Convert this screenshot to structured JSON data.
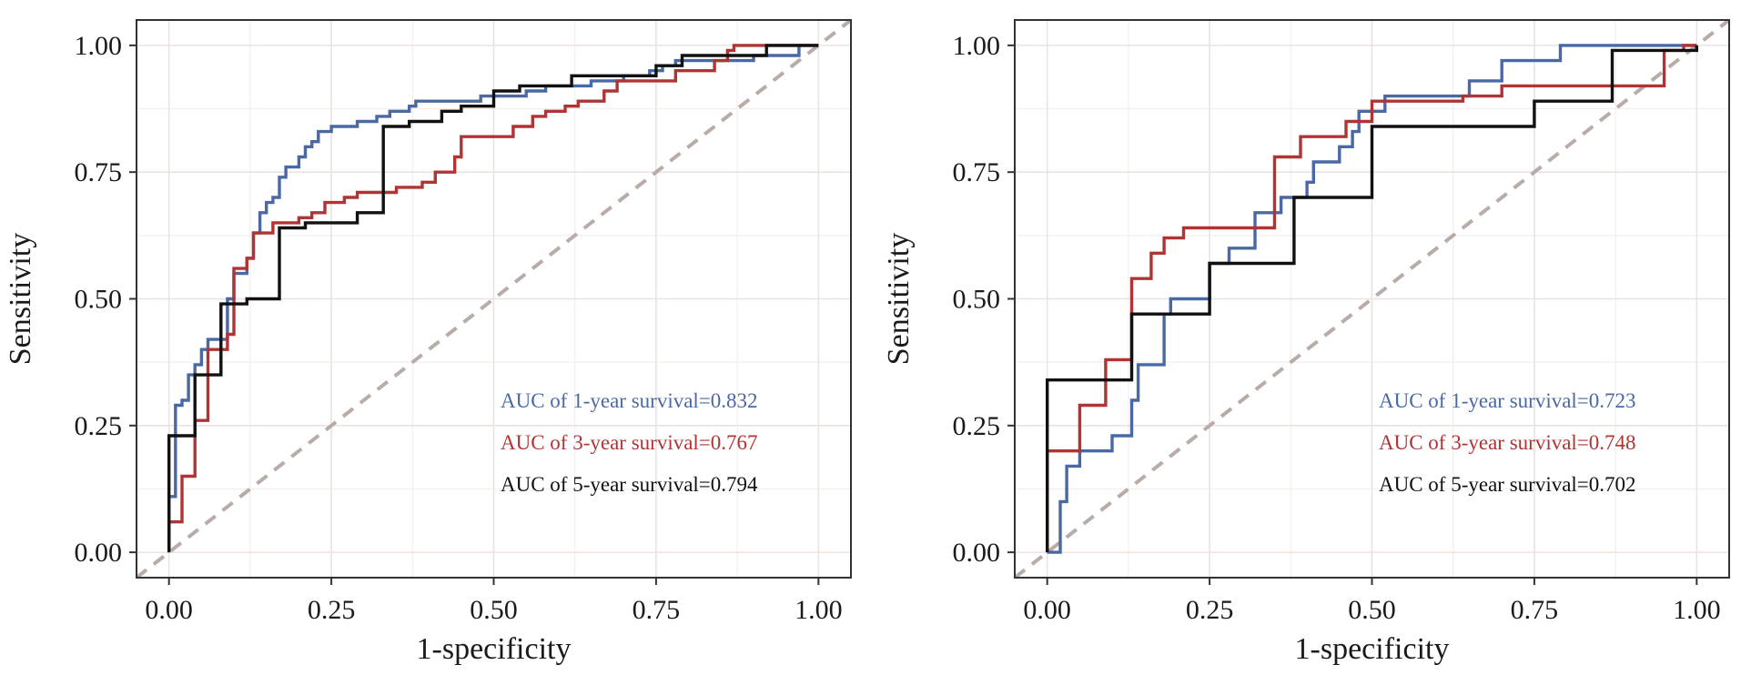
{
  "chart_data": [
    {
      "type": "line",
      "title": "",
      "xlabel": "1-specificity",
      "ylabel": "Sensitivity",
      "xlim": [
        -0.05,
        1.05
      ],
      "ylim": [
        -0.05,
        1.05
      ],
      "xticks": [
        "0.00",
        "0.25",
        "0.50",
        "0.75",
        "1.00"
      ],
      "yticks": [
        "0.00",
        "0.25",
        "0.50",
        "0.75",
        "1.00"
      ],
      "grid": true,
      "reference_line": "dashed diagonal from (0,0) to (1,1)",
      "series": [
        {
          "label": "AUC of 1-year survival=0.832",
          "color": "#4a69a4",
          "points": [
            [
              0,
              0
            ],
            [
              0,
              0.11
            ],
            [
              0.01,
              0.11
            ],
            [
              0.01,
              0.29
            ],
            [
              0.02,
              0.29
            ],
            [
              0.02,
              0.3
            ],
            [
              0.03,
              0.3
            ],
            [
              0.03,
              0.35
            ],
            [
              0.04,
              0.35
            ],
            [
              0.04,
              0.37
            ],
            [
              0.05,
              0.37
            ],
            [
              0.05,
              0.4
            ],
            [
              0.06,
              0.4
            ],
            [
              0.06,
              0.42
            ],
            [
              0.09,
              0.42
            ],
            [
              0.09,
              0.5
            ],
            [
              0.1,
              0.5
            ],
            [
              0.1,
              0.55
            ],
            [
              0.12,
              0.55
            ],
            [
              0.12,
              0.58
            ],
            [
              0.13,
              0.58
            ],
            [
              0.13,
              0.63
            ],
            [
              0.14,
              0.63
            ],
            [
              0.14,
              0.67
            ],
            [
              0.15,
              0.67
            ],
            [
              0.15,
              0.69
            ],
            [
              0.16,
              0.69
            ],
            [
              0.16,
              0.7
            ],
            [
              0.17,
              0.7
            ],
            [
              0.17,
              0.74
            ],
            [
              0.18,
              0.74
            ],
            [
              0.18,
              0.76
            ],
            [
              0.2,
              0.76
            ],
            [
              0.2,
              0.78
            ],
            [
              0.21,
              0.78
            ],
            [
              0.21,
              0.8
            ],
            [
              0.22,
              0.8
            ],
            [
              0.22,
              0.81
            ],
            [
              0.23,
              0.81
            ],
            [
              0.23,
              0.83
            ],
            [
              0.25,
              0.83
            ],
            [
              0.25,
              0.84
            ],
            [
              0.29,
              0.84
            ],
            [
              0.29,
              0.85
            ],
            [
              0.32,
              0.85
            ],
            [
              0.32,
              0.86
            ],
            [
              0.34,
              0.86
            ],
            [
              0.34,
              0.87
            ],
            [
              0.37,
              0.87
            ],
            [
              0.37,
              0.88
            ],
            [
              0.38,
              0.88
            ],
            [
              0.38,
              0.89
            ],
            [
              0.48,
              0.89
            ],
            [
              0.48,
              0.9
            ],
            [
              0.55,
              0.9
            ],
            [
              0.55,
              0.91
            ],
            [
              0.58,
              0.91
            ],
            [
              0.58,
              0.92
            ],
            [
              0.65,
              0.92
            ],
            [
              0.65,
              0.93
            ],
            [
              0.7,
              0.93
            ],
            [
              0.7,
              0.94
            ],
            [
              0.74,
              0.94
            ],
            [
              0.74,
              0.95
            ],
            [
              0.76,
              0.95
            ],
            [
              0.76,
              0.96
            ],
            [
              0.78,
              0.96
            ],
            [
              0.78,
              0.97
            ],
            [
              0.9,
              0.97
            ],
            [
              0.9,
              0.98
            ],
            [
              0.97,
              0.98
            ],
            [
              0.97,
              1.0
            ],
            [
              1.0,
              1.0
            ]
          ]
        },
        {
          "label": "AUC of 3-year survival=0.767",
          "color": "#b03434",
          "points": [
            [
              0,
              0
            ],
            [
              0,
              0.06
            ],
            [
              0.02,
              0.06
            ],
            [
              0.02,
              0.15
            ],
            [
              0.04,
              0.15
            ],
            [
              0.04,
              0.26
            ],
            [
              0.06,
              0.26
            ],
            [
              0.06,
              0.4
            ],
            [
              0.09,
              0.4
            ],
            [
              0.09,
              0.43
            ],
            [
              0.1,
              0.43
            ],
            [
              0.1,
              0.56
            ],
            [
              0.12,
              0.56
            ],
            [
              0.12,
              0.58
            ],
            [
              0.13,
              0.58
            ],
            [
              0.13,
              0.63
            ],
            [
              0.16,
              0.63
            ],
            [
              0.16,
              0.65
            ],
            [
              0.2,
              0.65
            ],
            [
              0.2,
              0.66
            ],
            [
              0.22,
              0.66
            ],
            [
              0.22,
              0.67
            ],
            [
              0.24,
              0.67
            ],
            [
              0.24,
              0.69
            ],
            [
              0.27,
              0.69
            ],
            [
              0.27,
              0.7
            ],
            [
              0.29,
              0.7
            ],
            [
              0.29,
              0.71
            ],
            [
              0.35,
              0.71
            ],
            [
              0.35,
              0.72
            ],
            [
              0.39,
              0.72
            ],
            [
              0.39,
              0.73
            ],
            [
              0.41,
              0.73
            ],
            [
              0.41,
              0.75
            ],
            [
              0.44,
              0.75
            ],
            [
              0.44,
              0.78
            ],
            [
              0.45,
              0.78
            ],
            [
              0.45,
              0.82
            ],
            [
              0.53,
              0.82
            ],
            [
              0.53,
              0.84
            ],
            [
              0.56,
              0.84
            ],
            [
              0.56,
              0.86
            ],
            [
              0.58,
              0.86
            ],
            [
              0.58,
              0.87
            ],
            [
              0.61,
              0.87
            ],
            [
              0.61,
              0.88
            ],
            [
              0.63,
              0.88
            ],
            [
              0.63,
              0.89
            ],
            [
              0.67,
              0.89
            ],
            [
              0.67,
              0.91
            ],
            [
              0.69,
              0.91
            ],
            [
              0.69,
              0.93
            ],
            [
              0.78,
              0.93
            ],
            [
              0.78,
              0.95
            ],
            [
              0.84,
              0.95
            ],
            [
              0.84,
              0.97
            ],
            [
              0.86,
              0.97
            ],
            [
              0.86,
              0.99
            ],
            [
              0.87,
              0.99
            ],
            [
              0.87,
              1.0
            ],
            [
              1.0,
              1.0
            ]
          ]
        },
        {
          "label": "AUC of 5-year survival=0.794",
          "color": "#111111",
          "points": [
            [
              0,
              0
            ],
            [
              0,
              0.23
            ],
            [
              0.04,
              0.23
            ],
            [
              0.04,
              0.35
            ],
            [
              0.08,
              0.35
            ],
            [
              0.08,
              0.49
            ],
            [
              0.12,
              0.49
            ],
            [
              0.12,
              0.5
            ],
            [
              0.17,
              0.5
            ],
            [
              0.17,
              0.64
            ],
            [
              0.21,
              0.64
            ],
            [
              0.21,
              0.65
            ],
            [
              0.29,
              0.65
            ],
            [
              0.29,
              0.67
            ],
            [
              0.33,
              0.67
            ],
            [
              0.33,
              0.84
            ],
            [
              0.37,
              0.84
            ],
            [
              0.37,
              0.85
            ],
            [
              0.42,
              0.85
            ],
            [
              0.42,
              0.87
            ],
            [
              0.45,
              0.87
            ],
            [
              0.45,
              0.88
            ],
            [
              0.5,
              0.88
            ],
            [
              0.5,
              0.91
            ],
            [
              0.54,
              0.91
            ],
            [
              0.54,
              0.92
            ],
            [
              0.62,
              0.92
            ],
            [
              0.62,
              0.94
            ],
            [
              0.75,
              0.94
            ],
            [
              0.75,
              0.96
            ],
            [
              0.79,
              0.96
            ],
            [
              0.79,
              0.98
            ],
            [
              0.92,
              0.98
            ],
            [
              0.92,
              1.0
            ],
            [
              1.0,
              1.0
            ]
          ]
        }
      ]
    },
    {
      "type": "line",
      "title": "",
      "xlabel": "1-specificity",
      "ylabel": "Sensitivity",
      "xlim": [
        -0.05,
        1.05
      ],
      "ylim": [
        -0.05,
        1.05
      ],
      "xticks": [
        "0.00",
        "0.25",
        "0.50",
        "0.75",
        "1.00"
      ],
      "yticks": [
        "0.00",
        "0.25",
        "0.50",
        "0.75",
        "1.00"
      ],
      "grid": true,
      "reference_line": "dashed diagonal from (0,0) to (1,1)",
      "series": [
        {
          "label": "AUC of 1-year survival=0.723",
          "color": "#4a69a4",
          "points": [
            [
              0,
              0
            ],
            [
              0.02,
              0
            ],
            [
              0.02,
              0.1
            ],
            [
              0.03,
              0.1
            ],
            [
              0.03,
              0.17
            ],
            [
              0.05,
              0.17
            ],
            [
              0.05,
              0.2
            ],
            [
              0.1,
              0.2
            ],
            [
              0.1,
              0.23
            ],
            [
              0.13,
              0.23
            ],
            [
              0.13,
              0.3
            ],
            [
              0.14,
              0.3
            ],
            [
              0.14,
              0.37
            ],
            [
              0.18,
              0.37
            ],
            [
              0.18,
              0.47
            ],
            [
              0.19,
              0.47
            ],
            [
              0.19,
              0.5
            ],
            [
              0.25,
              0.5
            ],
            [
              0.25,
              0.57
            ],
            [
              0.28,
              0.57
            ],
            [
              0.28,
              0.6
            ],
            [
              0.32,
              0.6
            ],
            [
              0.32,
              0.67
            ],
            [
              0.36,
              0.67
            ],
            [
              0.36,
              0.7
            ],
            [
              0.4,
              0.7
            ],
            [
              0.4,
              0.73
            ],
            [
              0.41,
              0.73
            ],
            [
              0.41,
              0.77
            ],
            [
              0.45,
              0.77
            ],
            [
              0.45,
              0.8
            ],
            [
              0.47,
              0.8
            ],
            [
              0.47,
              0.83
            ],
            [
              0.48,
              0.83
            ],
            [
              0.48,
              0.87
            ],
            [
              0.52,
              0.87
            ],
            [
              0.52,
              0.9
            ],
            [
              0.65,
              0.9
            ],
            [
              0.65,
              0.93
            ],
            [
              0.7,
              0.93
            ],
            [
              0.7,
              0.97
            ],
            [
              0.79,
              0.97
            ],
            [
              0.79,
              1.0
            ],
            [
              1.0,
              1.0
            ]
          ]
        },
        {
          "label": "AUC of 3-year survival=0.748",
          "color": "#b03434",
          "points": [
            [
              0,
              0
            ],
            [
              0,
              0.2
            ],
            [
              0.05,
              0.2
            ],
            [
              0.05,
              0.29
            ],
            [
              0.09,
              0.29
            ],
            [
              0.09,
              0.38
            ],
            [
              0.13,
              0.38
            ],
            [
              0.13,
              0.54
            ],
            [
              0.16,
              0.54
            ],
            [
              0.16,
              0.59
            ],
            [
              0.18,
              0.59
            ],
            [
              0.18,
              0.62
            ],
            [
              0.21,
              0.62
            ],
            [
              0.21,
              0.64
            ],
            [
              0.35,
              0.64
            ],
            [
              0.35,
              0.78
            ],
            [
              0.39,
              0.78
            ],
            [
              0.39,
              0.82
            ],
            [
              0.46,
              0.82
            ],
            [
              0.46,
              0.85
            ],
            [
              0.5,
              0.85
            ],
            [
              0.5,
              0.89
            ],
            [
              0.64,
              0.89
            ],
            [
              0.64,
              0.9
            ],
            [
              0.7,
              0.9
            ],
            [
              0.7,
              0.92
            ],
            [
              0.95,
              0.92
            ],
            [
              0.95,
              0.99
            ],
            [
              0.98,
              0.99
            ],
            [
              0.98,
              1.0
            ],
            [
              1.0,
              1.0
            ]
          ]
        },
        {
          "label": "AUC of 5-year survival=0.702",
          "color": "#111111",
          "points": [
            [
              0,
              0
            ],
            [
              0,
              0.34
            ],
            [
              0.13,
              0.34
            ],
            [
              0.13,
              0.47
            ],
            [
              0.25,
              0.47
            ],
            [
              0.25,
              0.57
            ],
            [
              0.38,
              0.57
            ],
            [
              0.38,
              0.7
            ],
            [
              0.5,
              0.7
            ],
            [
              0.5,
              0.84
            ],
            [
              0.75,
              0.84
            ],
            [
              0.75,
              0.89
            ],
            [
              0.87,
              0.89
            ],
            [
              0.87,
              0.99
            ],
            [
              1.0,
              0.99
            ],
            [
              1.0,
              1.0
            ]
          ]
        }
      ]
    }
  ]
}
